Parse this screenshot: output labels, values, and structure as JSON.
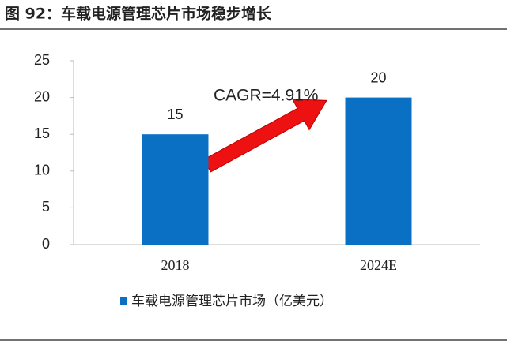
{
  "chart_data": {
    "type": "bar",
    "title": "图 92：车载电源管理芯片市场稳步增长",
    "categories": [
      "2018",
      "2024E"
    ],
    "series": [
      {
        "name": "车载电源管理芯片市场（亿美元）",
        "color": "#0a70c4",
        "values": [
          15,
          20
        ]
      }
    ],
    "ylim": [
      0,
      25
    ],
    "yticks": [
      0,
      5,
      10,
      15,
      20,
      25
    ],
    "annotation": "CAGR=4.91%",
    "legend": "bottom"
  }
}
